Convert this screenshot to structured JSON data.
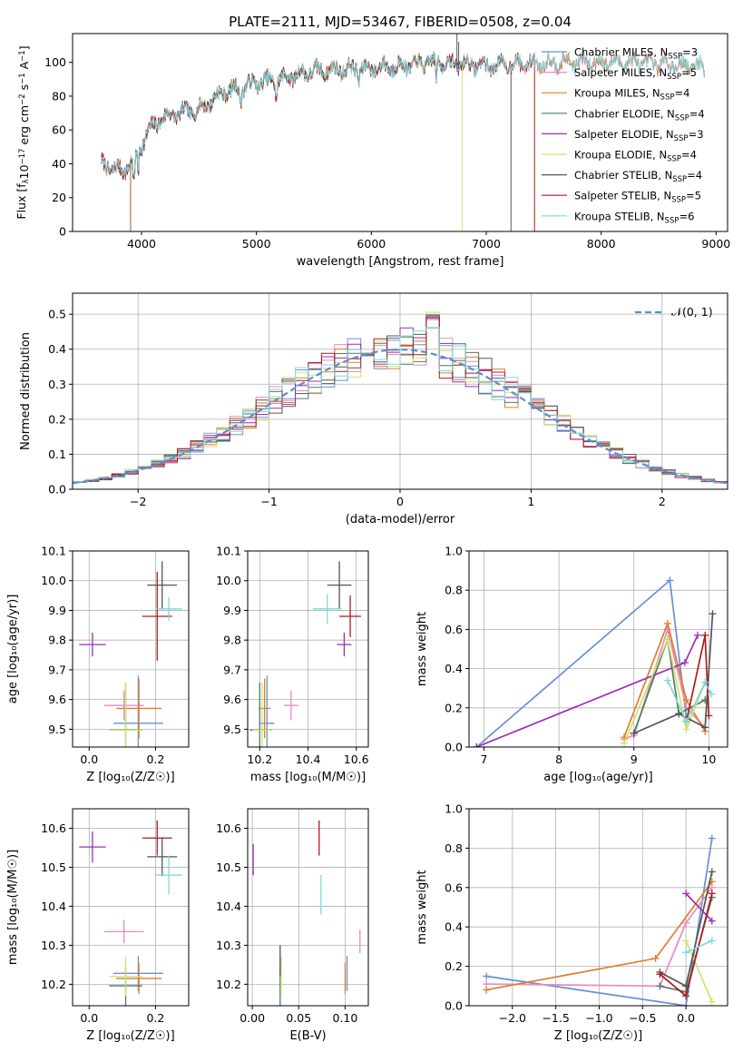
{
  "colors": {
    "chabrier_miles": "#6a8fd6",
    "salpeter_miles": "#e88ac2",
    "kroupa_miles": "#e07c2f",
    "chabrier_elodie": "#4f7a6a",
    "salpeter_elodie": "#9b2fb4",
    "kroupa_elodie": "#cfe36a",
    "chabrier_stelib": "#555555",
    "salpeter_stelib": "#b01c1c",
    "kroupa_stelib": "#7fd8da",
    "normal": "#5b8bd8",
    "grid": "#b0b0b0"
  },
  "chart_data": [
    {
      "id": "spectrum",
      "type": "line",
      "title": "PLATE=2111, MJD=53467, FIBERID=0508, z=0.04",
      "xlabel": "wavelength [Angstrom, rest frame]",
      "ylabel": "Flux [f_λ 10^-17 erg cm^-2 s^-1 A^-1]",
      "xlim": [
        3400,
        9100
      ],
      "ylim": [
        0,
        117
      ],
      "xticks": [
        4000,
        5000,
        6000,
        7000,
        8000,
        9000
      ],
      "yticks": [
        0,
        20,
        40,
        60,
        80,
        100
      ],
      "grid": false,
      "legend_placement": "top-right",
      "continuum": {
        "x": [
          3650,
          3750,
          3850,
          3950,
          4050,
          4150,
          4300,
          4500,
          4700,
          4860,
          5000,
          5200,
          5500,
          5800,
          6100,
          6300,
          6500,
          6800,
          7000,
          7300,
          7600,
          8000,
          8300,
          8600,
          8800,
          8920
        ],
        "y": [
          40,
          37,
          36,
          45,
          58,
          66,
          70,
          72,
          82,
          85,
          88,
          90,
          95,
          96,
          97,
          98,
          100,
          99,
          98,
          99,
          100,
          100,
          100,
          99,
          98,
          97
        ]
      },
      "dropouts": [
        {
          "series": "kroupa_elodie",
          "x": 6790
        },
        {
          "series": "chabrier_stelib",
          "x": 7215
        },
        {
          "series": "salpeter_stelib",
          "x": 7420
        },
        {
          "series": "salpeter_elodie",
          "x": 3905
        },
        {
          "series": "kroupa_elodie",
          "x": 3910
        }
      ],
      "series": [
        {
          "key": "chabrier_miles",
          "name": "Chabrier MILES, N_SSP=3",
          "label": "Chabrier MILES, N",
          "sub": "SSP",
          "suffix": "=3",
          "end": 8900
        },
        {
          "key": "salpeter_miles",
          "name": "Salpeter MILES, N_SSP=5",
          "label": "Salpeter MILES, N",
          "sub": "SSP",
          "suffix": "=5",
          "end": 8900
        },
        {
          "key": "kroupa_miles",
          "name": "Kroupa MILES, N_SSP=4",
          "label": "Kroupa MILES, N",
          "sub": "SSP",
          "suffix": "=4",
          "end": 8900
        },
        {
          "key": "chabrier_elodie",
          "name": "Chabrier ELODIE, N_SSP=4",
          "label": "Chabrier ELODIE, N",
          "sub": "SSP",
          "suffix": "=4",
          "end": 6790
        },
        {
          "key": "salpeter_elodie",
          "name": "Salpeter ELODIE, N_SSP=3",
          "label": "Salpeter ELODIE, N",
          "sub": "SSP",
          "suffix": "=3",
          "end": 6790
        },
        {
          "key": "kroupa_elodie",
          "name": "Kroupa ELODIE, N_SSP=4",
          "label": "Kroupa ELODIE, N",
          "sub": "SSP",
          "suffix": "=4",
          "end": 6790
        },
        {
          "key": "chabrier_stelib",
          "name": "Chabrier STELIB, N_SSP=4",
          "label": "Chabrier STELIB, N",
          "sub": "SSP",
          "suffix": "=4",
          "end": 7215
        },
        {
          "key": "salpeter_stelib",
          "name": "Salpeter STELIB, N_SSP=5",
          "label": "Salpeter STELIB, N",
          "sub": "SSP",
          "suffix": "=5",
          "end": 7420
        },
        {
          "key": "kroupa_stelib",
          "name": "Kroupa STELIB, N_SSP=6",
          "label": "Kroupa STELIB, N",
          "sub": "SSP",
          "suffix": "=6",
          "end": 8900
        }
      ]
    },
    {
      "id": "residuals",
      "type": "histogram",
      "xlabel": "(data-model)/error",
      "ylabel": "Normed distribution",
      "xlim": [
        -2.5,
        2.5
      ],
      "ylim": [
        0,
        0.56
      ],
      "xticks": [
        -2,
        -1,
        0,
        1,
        2
      ],
      "xticklabels": [
        "−2",
        "−1",
        "0",
        "1",
        "2"
      ],
      "yticks": [
        0.0,
        0.1,
        0.2,
        0.3,
        0.4,
        0.5
      ],
      "yticklabels": [
        "0.0",
        "0.1",
        "0.2",
        "0.3",
        "0.4",
        "0.5"
      ],
      "grid": true,
      "bin_width": 0.1,
      "legend_placement": "top-right",
      "normal_label": "𝒩(0, 1)",
      "peaks": [
        0.5,
        0.5,
        0.52,
        0.48,
        0.5,
        0.54,
        0.52,
        0.5,
        0.5
      ]
    },
    {
      "id": "age_vs_z",
      "type": "scatter",
      "xlabel": "Z [log₁₀(Z/Z☉)]",
      "ylabel": "age  [log₁₀(age/yr)]",
      "xlim": [
        -0.05,
        0.3
      ],
      "ylim": [
        9.44,
        10.1
      ],
      "xticks": [
        0.0,
        0.2
      ],
      "xticklabels": [
        "0.0",
        "0.2"
      ],
      "yticks": [
        9.5,
        9.6,
        9.7,
        9.8,
        9.9,
        10.0,
        10.1
      ],
      "yticklabels": [
        "9.5",
        "9.6",
        "9.7",
        "9.8",
        "9.9",
        "10.0",
        "10.1"
      ],
      "grid": true,
      "points": [
        {
          "series": "chabrier_miles",
          "x": 0.148,
          "xerr": 0.075,
          "y": 9.52,
          "yerr": 0.16
        },
        {
          "series": "salpeter_miles",
          "x": 0.105,
          "xerr": 0.06,
          "y": 9.58,
          "yerr": 0.05
        },
        {
          "series": "kroupa_miles",
          "x": 0.15,
          "xerr": 0.068,
          "y": 9.57,
          "yerr": 0.1
        },
        {
          "series": "chabrier_elodie",
          "x": 0.11,
          "xerr": 0.05,
          "y": 9.497,
          "yerr": 0.16
        },
        {
          "series": "salpeter_elodie",
          "x": 0.01,
          "xerr": 0.04,
          "y": 9.785,
          "yerr": 0.04
        },
        {
          "series": "kroupa_elodie",
          "x": 0.11,
          "xerr": 0.05,
          "y": 9.497,
          "yerr": 0.16
        },
        {
          "series": "chabrier_stelib",
          "x": 0.22,
          "xerr": 0.045,
          "y": 9.985,
          "yerr": 0.08
        },
        {
          "series": "salpeter_stelib",
          "x": 0.205,
          "xerr": 0.045,
          "y": 9.88,
          "yerr": 0.15
        },
        {
          "series": "kroupa_stelib",
          "x": 0.24,
          "xerr": 0.04,
          "y": 9.905,
          "yerr": 0.04
        }
      ]
    },
    {
      "id": "age_vs_mass",
      "type": "scatter",
      "xlabel": "mass [log₁₀(M/M☉)]",
      "xlim": [
        10.15,
        10.65
      ],
      "ylim": [
        9.44,
        10.1
      ],
      "xticks": [
        10.2,
        10.4,
        10.6
      ],
      "xticklabels": [
        "10.2",
        "10.4",
        "10.6"
      ],
      "yticks": [
        9.5,
        9.6,
        9.7,
        9.8,
        9.9,
        10.0,
        10.1
      ],
      "yticklabels": [
        "9.5",
        "9.6",
        "9.7",
        "9.8",
        "9.9",
        "10.0",
        "10.1"
      ],
      "grid": true,
      "points": [
        {
          "series": "chabrier_miles",
          "x": 10.23,
          "xerr": 0.03,
          "y": 9.52,
          "yerr": 0.16
        },
        {
          "series": "salpeter_miles",
          "x": 10.33,
          "xerr": 0.03,
          "y": 9.58,
          "yerr": 0.05
        },
        {
          "series": "kroupa_miles",
          "x": 10.22,
          "xerr": 0.025,
          "y": 9.57,
          "yerr": 0.1
        },
        {
          "series": "chabrier_elodie",
          "x": 10.2,
          "xerr": 0.04,
          "y": 9.497,
          "yerr": 0.16
        },
        {
          "series": "salpeter_elodie",
          "x": 10.55,
          "xerr": 0.03,
          "y": 9.785,
          "yerr": 0.04
        },
        {
          "series": "kroupa_elodie",
          "x": 10.21,
          "xerr": 0.04,
          "y": 9.497,
          "yerr": 0.16
        },
        {
          "series": "chabrier_stelib",
          "x": 10.53,
          "xerr": 0.05,
          "y": 9.985,
          "yerr": 0.08
        },
        {
          "series": "salpeter_stelib",
          "x": 10.575,
          "xerr": 0.045,
          "y": 9.88,
          "yerr": 0.07
        },
        {
          "series": "kroupa_stelib",
          "x": 10.48,
          "xerr": 0.06,
          "y": 9.905,
          "yerr": 0.05
        }
      ]
    },
    {
      "id": "weight_vs_age",
      "type": "line",
      "xlabel": "age  [log₁₀(age/yr)]",
      "ylabel": "mass weight",
      "xlim": [
        6.8,
        10.25
      ],
      "ylim": [
        0,
        1
      ],
      "xticks": [
        7,
        8,
        9,
        10
      ],
      "xticklabels": [
        "7",
        "8",
        "9",
        "10"
      ],
      "yticks": [
        0.0,
        0.2,
        0.4,
        0.6,
        0.8,
        1.0
      ],
      "yticklabels": [
        "0.0",
        "0.2",
        "0.4",
        "0.6",
        "0.8",
        "1.0"
      ],
      "grid": true,
      "series": [
        {
          "key": "chabrier_miles",
          "x": [
            6.9,
            9.48,
            9.7
          ],
          "y": [
            0.0,
            0.85,
            0.15
          ]
        },
        {
          "key": "salpeter_miles",
          "x": [
            8.87,
            9.0,
            9.45,
            9.7,
            9.95
          ],
          "y": [
            0.04,
            0.06,
            0.6,
            0.2,
            0.1
          ]
        },
        {
          "key": "kroupa_miles",
          "x": [
            8.87,
            9.45,
            9.7,
            9.95
          ],
          "y": [
            0.05,
            0.63,
            0.24,
            0.08
          ]
        },
        {
          "key": "chabrier_elodie",
          "x": [
            9.0,
            9.45,
            9.6,
            9.95
          ],
          "y": [
            0.07,
            0.55,
            0.17,
            0.24
          ]
        },
        {
          "key": "salpeter_elodie",
          "x": [
            6.9,
            9.68,
            9.85
          ],
          "y": [
            0.0,
            0.43,
            0.57
          ]
        },
        {
          "key": "kroupa_elodie",
          "x": [
            8.87,
            9.45,
            9.7,
            9.95
          ],
          "y": [
            0.02,
            0.55,
            0.09,
            0.33
          ]
        },
        {
          "key": "chabrier_stelib",
          "x": [
            9.0,
            9.6,
            9.95,
            10.05
          ],
          "y": [
            0.07,
            0.17,
            0.1,
            0.68
          ]
        },
        {
          "key": "salpeter_stelib",
          "x": [
            9.7,
            9.95,
            10.0
          ],
          "y": [
            0.13,
            0.57,
            0.16
          ]
        },
        {
          "key": "kroupa_stelib",
          "x": [
            9.45,
            9.7,
            9.95,
            10.03
          ],
          "y": [
            0.34,
            0.13,
            0.33,
            0.27
          ]
        }
      ]
    },
    {
      "id": "mass_vs_z",
      "type": "scatter",
      "xlabel": "Z [log₁₀(Z/Z☉)]",
      "ylabel": "mass [log₁₀(M/M☉)]",
      "xlim": [
        -0.05,
        0.3
      ],
      "ylim": [
        10.145,
        10.65
      ],
      "xticks": [
        0.0,
        0.2
      ],
      "xticklabels": [
        "0.0",
        "0.2"
      ],
      "yticks": [
        10.2,
        10.3,
        10.4,
        10.5,
        10.6
      ],
      "yticklabels": [
        "10.2",
        "10.3",
        "10.4",
        "10.5",
        "10.6"
      ],
      "grid": true,
      "points": [
        {
          "series": "chabrier_miles",
          "x": 0.148,
          "xerr": 0.075,
          "y": 10.228,
          "yerr": 0.045
        },
        {
          "series": "salpeter_miles",
          "x": 0.105,
          "xerr": 0.06,
          "y": 10.335,
          "yerr": 0.03
        },
        {
          "series": "kroupa_miles",
          "x": 0.15,
          "xerr": 0.068,
          "y": 10.215,
          "yerr": 0.04
        },
        {
          "series": "chabrier_elodie",
          "x": 0.11,
          "xerr": 0.05,
          "y": 10.196,
          "yerr": 0.05
        },
        {
          "series": "salpeter_elodie",
          "x": 0.01,
          "xerr": 0.04,
          "y": 10.552,
          "yerr": 0.04
        },
        {
          "series": "kroupa_elodie",
          "x": 0.11,
          "xerr": 0.05,
          "y": 10.22,
          "yerr": 0.05
        },
        {
          "series": "chabrier_stelib",
          "x": 0.22,
          "xerr": 0.045,
          "y": 10.527,
          "yerr": 0.05
        },
        {
          "series": "salpeter_stelib",
          "x": 0.205,
          "xerr": 0.045,
          "y": 10.575,
          "yerr": 0.045
        },
        {
          "series": "kroupa_stelib",
          "x": 0.24,
          "xerr": 0.04,
          "y": 10.48,
          "yerr": 0.05
        }
      ]
    },
    {
      "id": "mass_vs_ebv",
      "type": "scatter",
      "xlabel": "E(B-V)",
      "xlim": [
        -0.005,
        0.125
      ],
      "ylim": [
        10.145,
        10.65
      ],
      "xticks": [
        0.0,
        0.05,
        0.1
      ],
      "xticklabels": [
        "0.00",
        "0.05",
        "0.10"
      ],
      "yticks": [
        10.2,
        10.3,
        10.4,
        10.5,
        10.6
      ],
      "yticklabels": [
        "10.2",
        "10.3",
        "10.4",
        "10.5",
        "10.6"
      ],
      "grid": true,
      "points": [
        {
          "series": "chabrier_miles",
          "x": 0.102,
          "y": 10.228,
          "yerr": 0.045
        },
        {
          "series": "salpeter_miles",
          "x": 0.116,
          "y": 10.31,
          "yerr": 0.03
        },
        {
          "series": "kroupa_miles",
          "x": 0.1,
          "y": 10.215,
          "yerr": 0.04
        },
        {
          "series": "chabrier_elodie",
          "x": 0.03,
          "y": 10.196,
          "yerr": 0.05
        },
        {
          "series": "salpeter_elodie",
          "x": 0.001,
          "y": 10.52,
          "yerr": 0.04
        },
        {
          "series": "kroupa_elodie",
          "x": 0.031,
          "y": 10.22,
          "yerr": 0.05
        },
        {
          "series": "chabrier_stelib",
          "x": 0.03,
          "y": 10.26,
          "yerr": 0.04
        },
        {
          "series": "salpeter_stelib",
          "x": 0.072,
          "y": 10.575,
          "yerr": 0.045
        },
        {
          "series": "kroupa_stelib",
          "x": 0.074,
          "y": 10.43,
          "yerr": 0.05
        }
      ]
    },
    {
      "id": "weight_vs_z",
      "type": "line",
      "xlabel": "Z [log₁₀(Z/Z☉)]",
      "ylabel": "mass weight",
      "xlim": [
        -2.5,
        0.48
      ],
      "ylim": [
        0,
        1
      ],
      "xticks": [
        -2.0,
        -1.5,
        -1.0,
        -0.5,
        0.0
      ],
      "xticklabels": [
        "−2.0",
        "−1.5",
        "−1.0",
        "−0.5",
        "0.0"
      ],
      "yticks": [
        0.0,
        0.2,
        0.4,
        0.6,
        0.8,
        1.0
      ],
      "yticklabels": [
        "0.0",
        "0.2",
        "0.4",
        "0.6",
        "0.8",
        "1.0"
      ],
      "grid": true,
      "series": [
        {
          "key": "chabrier_miles",
          "x": [
            -2.3,
            0.0,
            0.3
          ],
          "y": [
            0.15,
            0.0,
            0.85
          ]
        },
        {
          "key": "salpeter_miles",
          "x": [
            -2.3,
            -0.3,
            0.0,
            0.3
          ],
          "y": [
            0.11,
            0.1,
            0.42,
            0.6
          ]
        },
        {
          "key": "kroupa_miles",
          "x": [
            -2.3,
            -0.35,
            0.3
          ],
          "y": [
            0.08,
            0.24,
            0.63
          ]
        },
        {
          "key": "chabrier_elodie",
          "x": [
            -0.3,
            0.0,
            0.3
          ],
          "y": [
            0.1,
            0.07,
            0.55
          ]
        },
        {
          "key": "salpeter_elodie",
          "x": [
            0.0,
            0.3
          ],
          "y": [
            0.57,
            0.43
          ]
        },
        {
          "key": "kroupa_elodie",
          "x": [
            0.0,
            0.3
          ],
          "y": [
            0.33,
            0.02
          ]
        },
        {
          "key": "chabrier_stelib",
          "x": [
            -0.3,
            0.0,
            0.3
          ],
          "y": [
            0.17,
            0.1,
            0.68
          ]
        },
        {
          "key": "salpeter_stelib",
          "x": [
            -0.3,
            0.0,
            0.3
          ],
          "y": [
            0.16,
            0.05,
            0.57
          ]
        },
        {
          "key": "kroupa_stelib",
          "x": [
            0.0,
            0.3
          ],
          "y": [
            0.27,
            0.33
          ]
        }
      ]
    }
  ]
}
